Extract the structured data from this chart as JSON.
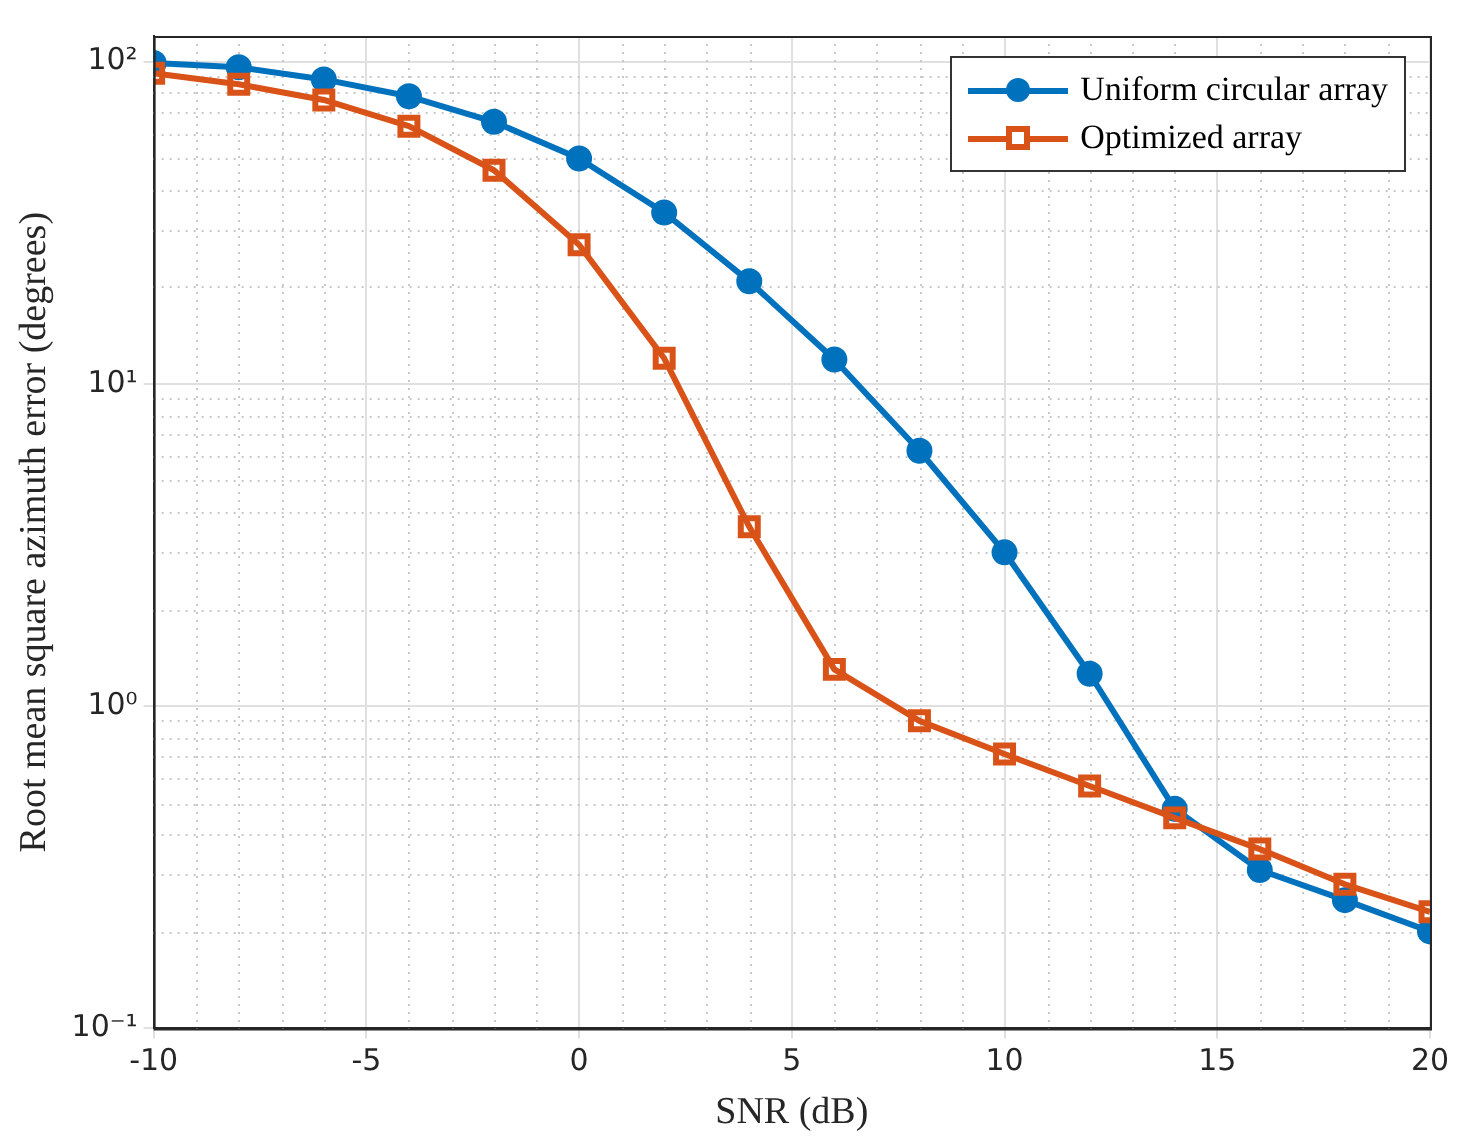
{
  "chart_data": {
    "type": "line",
    "xlabel": "SNR (dB)",
    "ylabel": "Root mean square azimuth error (degrees)",
    "x": [
      -10,
      -8,
      -6,
      -4,
      -2,
      0,
      2,
      4,
      6,
      8,
      10,
      12,
      14,
      16,
      18,
      20
    ],
    "series": [
      {
        "name": "Uniform circular array",
        "color": "#0072bd",
        "marker": "circle",
        "values": [
          99,
          96,
          88,
          78,
          65,
          50,
          34,
          20.8,
          11.9,
          6.2,
          3.0,
          1.26,
          0.48,
          0.31,
          0.25,
          0.2
        ]
      },
      {
        "name": "Optimized array",
        "color": "#d95319",
        "marker": "square",
        "values": [
          92,
          85,
          76,
          63,
          46,
          27,
          12,
          3.6,
          1.3,
          0.9,
          0.71,
          0.565,
          0.45,
          0.36,
          0.28,
          0.23
        ]
      }
    ],
    "log": "y",
    "xlim": [
      -10,
      20
    ],
    "xticks": [
      -10,
      -5,
      0,
      5,
      10,
      15,
      20
    ],
    "ylim": [
      0.1,
      120
    ],
    "yticks": [
      {
        "value": 0.1,
        "label": "10⁻¹"
      },
      {
        "value": 1,
        "label": "10⁰"
      },
      {
        "value": 10,
        "label": "10¹"
      },
      {
        "value": 100,
        "label": "10²"
      }
    ],
    "grid": true,
    "legend": "top right",
    "line_style": "solid"
  }
}
